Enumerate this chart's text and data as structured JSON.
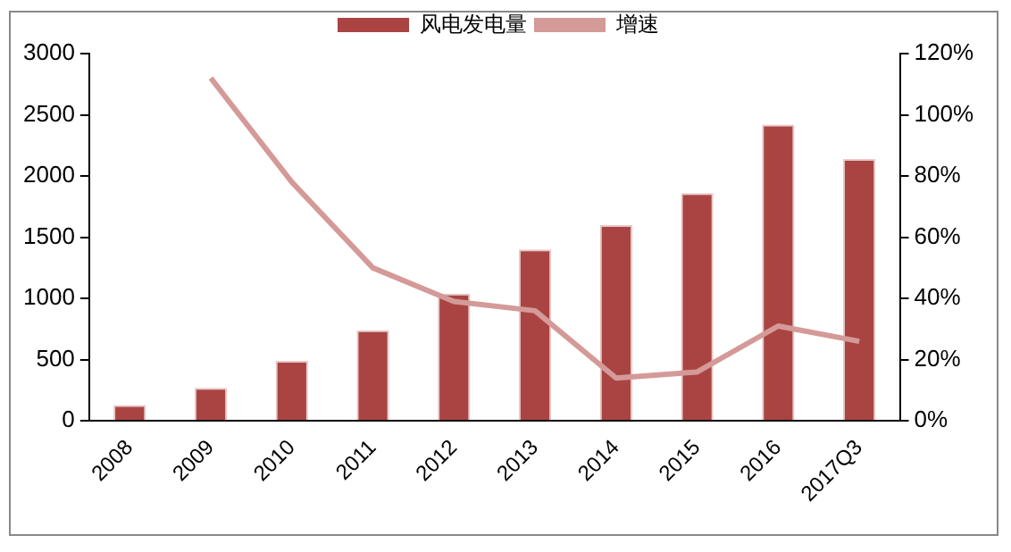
{
  "chart_data": {
    "type": "bar",
    "categories": [
      "2008",
      "2009",
      "2010",
      "2011",
      "2012",
      "2013",
      "2014",
      "2015",
      "2016",
      "2017Q3"
    ],
    "series": [
      {
        "name": "风电发电量",
        "color": "#a94442",
        "values": [
          130,
          270,
          490,
          740,
          1040,
          1400,
          1600,
          1860,
          2420,
          2140
        ]
      },
      {
        "name": "增速",
        "type": "line",
        "axis": "y2",
        "color": "#d49a98",
        "marker": "none",
        "values": [
          null,
          112,
          78,
          50,
          39,
          36,
          14,
          16,
          31,
          26
        ]
      }
    ],
    "ylim": [
      0,
      3000
    ],
    "yticks": [
      0,
      500,
      1000,
      1500,
      2000,
      2500,
      3000
    ],
    "y2lim": [
      0,
      120
    ],
    "y2ticks": [
      {
        "value": 0,
        "label": "0%"
      },
      {
        "value": 20,
        "label": "20%"
      },
      {
        "value": 40,
        "label": "40%"
      },
      {
        "value": 60,
        "label": "60%"
      },
      {
        "value": 80,
        "label": "80%"
      },
      {
        "value": 100,
        "label": "100%"
      },
      {
        "value": 120,
        "label": "120%"
      }
    ],
    "grid": false,
    "legend": "top"
  }
}
